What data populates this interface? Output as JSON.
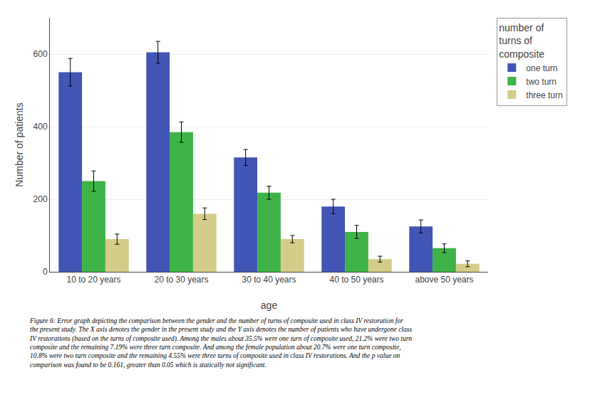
{
  "chart_data": {
    "type": "bar",
    "categories": [
      "10 to 20 years",
      "20 to 30 years",
      "30 to 40 years",
      "40 to 50 years",
      "above 50 years"
    ],
    "series": [
      {
        "name": "one turn",
        "color": "#4255b5",
        "values": [
          550,
          605,
          315,
          180,
          125
        ],
        "errors": [
          38,
          30,
          22,
          20,
          18
        ]
      },
      {
        "name": "two turn",
        "color": "#3db348",
        "values": [
          250,
          385,
          218,
          110,
          65
        ],
        "errors": [
          28,
          28,
          18,
          18,
          12
        ]
      },
      {
        "name": "three turn",
        "color": "#d4cc88",
        "values": [
          90,
          160,
          90,
          35,
          22
        ],
        "errors": [
          14,
          16,
          10,
          8,
          8
        ]
      }
    ],
    "xlabel": "age",
    "ylabel": "Number of patients",
    "legend_title": "number of\nturns of\ncomposite",
    "ylim": [
      0,
      700
    ],
    "yticks": [
      0,
      200,
      400,
      600
    ],
    "grid": true,
    "annotations": [
      "Figure 6: Error graph depicting the comparison between the gender and the number of turns of composite used in class IV restoration for",
      "the present study. The X axis denotes the gender in the present study and the Y axis denotes the number of patients who have undergone class",
      "IV restorations (based on the turns of composite used). Among the males about 35.5% were one turn of composite used, 21.2% were two turn",
      "composite and the remaining 7.19% were three turn composite. And among the female population about 20.7% were one turn composite,",
      "10.8% were two turn composite and the remaining 4.55% were three turns of composite used in class IV restorations. And the p value on",
      "comparison was found to be 0.161, greater than 0.05 which is statically not significant."
    ]
  }
}
